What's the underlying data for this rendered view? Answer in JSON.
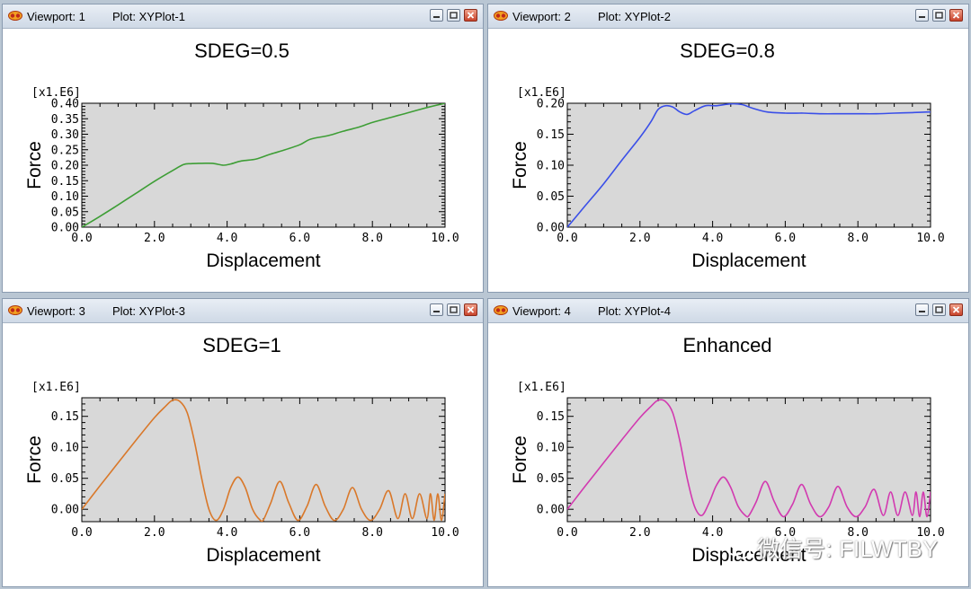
{
  "viewports": [
    {
      "label": "Viewport: 1",
      "plot": "Plot: XYPlot-1",
      "chart_data": {
        "type": "line",
        "title": "SDEG=0.5",
        "xlabel": "Displacement",
        "ylabel": "Force",
        "y_scale_label": "[x1.E6]",
        "xlim": [
          0,
          10
        ],
        "ylim": [
          0,
          0.4
        ],
        "xticks": [
          "0.0",
          "2.0",
          "4.0",
          "6.0",
          "8.0",
          "10.0"
        ],
        "yticks": [
          "0.00",
          "0.05",
          "0.10",
          "0.15",
          "0.20",
          "0.25",
          "0.30",
          "0.35",
          "0.40"
        ],
        "grid": false,
        "series": [
          {
            "color": "#3e9e36",
            "x": [
              0,
              0.5,
              1.0,
              1.5,
              2.0,
              2.5,
              2.8,
              3.0,
              3.3,
              3.6,
              3.9,
              4.1,
              4.4,
              4.8,
              5.2,
              5.6,
              6.0,
              6.3,
              6.8,
              7.2,
              7.6,
              8.0,
              8.5,
              9.0,
              9.5,
              10.0
            ],
            "y": [
              0,
              0.035,
              0.072,
              0.11,
              0.148,
              0.183,
              0.202,
              0.205,
              0.206,
              0.206,
              0.2,
              0.204,
              0.214,
              0.22,
              0.236,
              0.25,
              0.266,
              0.284,
              0.296,
              0.31,
              0.322,
              0.338,
              0.354,
              0.37,
              0.386,
              0.4
            ]
          }
        ]
      }
    },
    {
      "label": "Viewport: 2",
      "plot": "Plot: XYPlot-2",
      "chart_data": {
        "type": "line",
        "title": "SDEG=0.8",
        "xlabel": "Displacement",
        "ylabel": "Force",
        "y_scale_label": "[x1.E6]",
        "xlim": [
          0,
          10
        ],
        "ylim": [
          0,
          0.2
        ],
        "xticks": [
          "0.0",
          "2.0",
          "4.0",
          "6.0",
          "8.0",
          "10.0"
        ],
        "yticks": [
          "0.00",
          "0.05",
          "0.10",
          "0.15",
          "0.20"
        ],
        "grid": false,
        "series": [
          {
            "color": "#3a4fe8",
            "x": [
              0,
              0.5,
              1.0,
              1.5,
              2.0,
              2.3,
              2.5,
              2.7,
              2.9,
              3.1,
              3.3,
              3.5,
              3.8,
              4.1,
              4.5,
              4.8,
              5.1,
              5.5,
              6.0,
              6.5,
              7.0,
              7.5,
              8.0,
              8.5,
              9.0,
              9.5,
              10.0
            ],
            "y": [
              0,
              0.035,
              0.07,
              0.108,
              0.145,
              0.17,
              0.19,
              0.196,
              0.194,
              0.186,
              0.182,
              0.188,
              0.196,
              0.196,
              0.199,
              0.198,
              0.192,
              0.186,
              0.184,
              0.184,
              0.183,
              0.183,
              0.183,
              0.183,
              0.184,
              0.185,
              0.186
            ]
          }
        ]
      }
    },
    {
      "label": "Viewport: 3",
      "plot": "Plot: XYPlot-3",
      "chart_data": {
        "type": "line",
        "title": "SDEG=1",
        "xlabel": "Displacement",
        "ylabel": "Force",
        "y_scale_label": "[x1.E6]",
        "xlim": [
          0,
          10
        ],
        "ylim": [
          -0.02,
          0.18
        ],
        "xticks": [
          "0.0",
          "2.0",
          "4.0",
          "6.0",
          "8.0",
          "10.0"
        ],
        "yticks": [
          "0.00",
          "0.05",
          "0.10",
          "0.15"
        ],
        "ytick_values": [
          0,
          0.05,
          0.1,
          0.15
        ],
        "grid": false,
        "series": [
          {
            "color": "#d9782a",
            "x": [
              0,
              0.5,
              1.0,
              1.5,
              2.0,
              2.3,
              2.5,
              2.7,
              2.9,
              3.1,
              3.3,
              3.5,
              3.7,
              3.9,
              4.1,
              4.3,
              4.5,
              4.7,
              4.9,
              5.0,
              5.2,
              5.45,
              5.7,
              5.95,
              6.2,
              6.45,
              6.7,
              6.95,
              7.2,
              7.45,
              7.7,
              7.95,
              8.2,
              8.45,
              8.7,
              8.9,
              9.1,
              9.3,
              9.5,
              9.6,
              9.7,
              9.8,
              9.9,
              10.0
            ],
            "y": [
              0,
              0.038,
              0.075,
              0.112,
              0.148,
              0.166,
              0.176,
              0.174,
              0.156,
              0.11,
              0.05,
              0.0,
              -0.018,
              0.0,
              0.035,
              0.052,
              0.035,
              0.0,
              -0.017,
              -0.017,
              0.01,
              0.045,
              0.01,
              -0.018,
              0.005,
              0.04,
              0.005,
              -0.018,
              0.0,
              0.035,
              0.0,
              -0.018,
              0.0,
              0.03,
              -0.015,
              0.025,
              -0.015,
              0.025,
              -0.015,
              0.025,
              -0.018,
              0.025,
              -0.018,
              0.025
            ]
          }
        ]
      }
    },
    {
      "label": "Viewport: 4",
      "plot": "Plot: XYPlot-4",
      "chart_data": {
        "type": "line",
        "title": "Enhanced",
        "xlabel": "Displacement",
        "ylabel": "Force",
        "y_scale_label": "[x1.E6]",
        "xlim": [
          0,
          10
        ],
        "ylim": [
          -0.02,
          0.18
        ],
        "xticks": [
          "0.0",
          "2.0",
          "4.0",
          "6.0",
          "8.0",
          "10.0"
        ],
        "yticks": [
          "0.00",
          "0.05",
          "0.10",
          "0.15"
        ],
        "ytick_values": [
          0,
          0.05,
          0.1,
          0.15
        ],
        "grid": false,
        "series": [
          {
            "color": "#d23ab0",
            "x": [
              0,
              0.5,
              1.0,
              1.5,
              2.0,
              2.3,
              2.5,
              2.7,
              2.9,
              3.1,
              3.3,
              3.5,
              3.7,
              3.9,
              4.1,
              4.3,
              4.5,
              4.7,
              4.9,
              5.0,
              5.2,
              5.45,
              5.7,
              5.95,
              6.2,
              6.45,
              6.7,
              6.95,
              7.2,
              7.45,
              7.7,
              7.95,
              8.2,
              8.45,
              8.7,
              8.9,
              9.1,
              9.3,
              9.5,
              9.6,
              9.7,
              9.8,
              9.9,
              10.0
            ],
            "y": [
              0,
              0.038,
              0.075,
              0.112,
              0.148,
              0.166,
              0.176,
              0.174,
              0.156,
              0.11,
              0.05,
              0.005,
              -0.01,
              0.01,
              0.038,
              0.052,
              0.035,
              0.005,
              -0.01,
              -0.01,
              0.012,
              0.045,
              0.012,
              -0.012,
              0.008,
              0.04,
              0.008,
              -0.012,
              0.004,
              0.037,
              0.004,
              -0.012,
              0.004,
              0.032,
              -0.01,
              0.028,
              -0.01,
              0.028,
              -0.01,
              0.028,
              -0.012,
              0.028,
              -0.012,
              0.028
            ]
          }
        ]
      }
    }
  ],
  "watermark": "微信号: FILWTBY",
  "colors": {
    "plot_bg": "#d8d8d8",
    "titlebar": "#dbe3ed"
  }
}
